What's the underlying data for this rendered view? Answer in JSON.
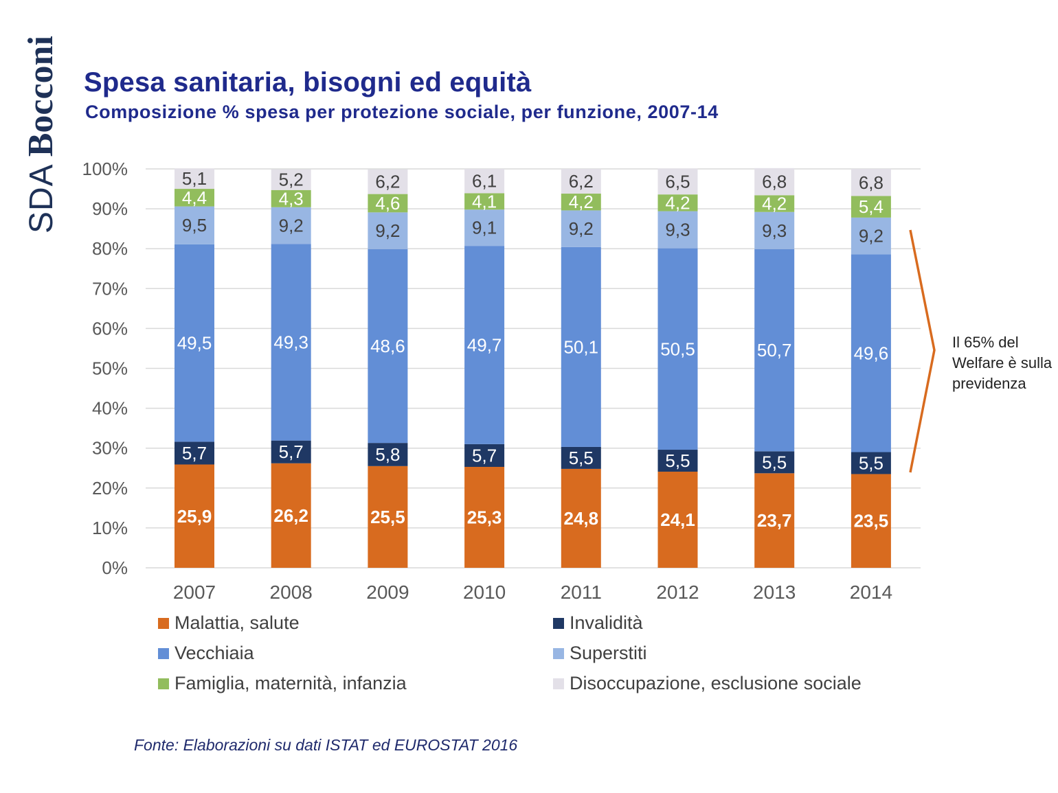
{
  "logo": {
    "prefix": "SDA",
    "name": "Bocconi"
  },
  "header": {
    "title": "Spesa sanitaria, bisogni ed equità",
    "subtitle": "Composizione % spesa per protezione sociale, per funzione, 2007-14"
  },
  "annotation": "Il 65% del Welfare è sulla previdenza",
  "source": "Fonte: Elaborazioni su dati ISTAT ed EUROSTAT 2016",
  "colors": {
    "malattia": "#d86b1f",
    "invalidita": "#1f3864",
    "vecchiaia": "#628ed6",
    "superstiti": "#98b6e3",
    "famiglia": "#92bd5d",
    "disoccupazione": "#e3e0e8",
    "arrow": "#d86b1f"
  },
  "chart_data": {
    "type": "bar",
    "stacked": true,
    "categories": [
      "2007",
      "2008",
      "2009",
      "2010",
      "2011",
      "2012",
      "2013",
      "2014"
    ],
    "ylim": [
      0,
      100
    ],
    "yticks": [
      "0%",
      "10%",
      "20%",
      "30%",
      "40%",
      "50%",
      "60%",
      "70%",
      "80%",
      "90%",
      "100%"
    ],
    "grid": true,
    "legend_position": "bottom",
    "series": [
      {
        "name": "Malattia, salute",
        "key": "malattia",
        "values": [
          25.9,
          26.2,
          25.5,
          25.3,
          24.8,
          24.1,
          23.7,
          23.5
        ],
        "labels": [
          "25,9",
          "26,2",
          "25,5",
          "25,3",
          "24,8",
          "24,1",
          "23,7",
          "23,5"
        ]
      },
      {
        "name": "Invalidità",
        "key": "invalidita",
        "values": [
          5.7,
          5.7,
          5.8,
          5.7,
          5.5,
          5.5,
          5.5,
          5.5
        ],
        "labels": [
          "5,7",
          "5,7",
          "5,8",
          "5,7",
          "5,5",
          "5,5",
          "5,5",
          "5,5"
        ]
      },
      {
        "name": "Vecchiaia",
        "key": "vecchiaia",
        "values": [
          49.5,
          49.3,
          48.6,
          49.7,
          50.1,
          50.5,
          50.7,
          49.6
        ],
        "labels": [
          "49,5",
          "49,3",
          "48,6",
          "49,7",
          "50,1",
          "50,5",
          "50,7",
          "49,6"
        ]
      },
      {
        "name": "Superstiti",
        "key": "superstiti",
        "values": [
          9.5,
          9.2,
          9.2,
          9.1,
          9.2,
          9.3,
          9.3,
          9.2
        ],
        "labels": [
          "9,5",
          "9,2",
          "9,2",
          "9,1",
          "9,2",
          "9,3",
          "9,3",
          "9,2"
        ]
      },
      {
        "name": "Famiglia, maternità, infanzia",
        "key": "famiglia",
        "values": [
          4.4,
          4.3,
          4.6,
          4.1,
          4.2,
          4.2,
          4.2,
          5.4
        ],
        "labels": [
          "4,4",
          "4,3",
          "4,6",
          "4,1",
          "4,2",
          "4,2",
          "4,2",
          "5,4"
        ]
      },
      {
        "name": "Disoccupazione, esclusione sociale",
        "key": "disoccupazione",
        "values": [
          5.1,
          5.2,
          6.2,
          6.1,
          6.2,
          6.5,
          6.8,
          6.8
        ],
        "labels": [
          "5,1",
          "5,2",
          "6,2",
          "6,1",
          "6,2",
          "6,5",
          "6,8",
          "6,8"
        ]
      }
    ],
    "legend_order": [
      "malattia",
      "invalidita",
      "vecchiaia",
      "superstiti",
      "famiglia",
      "disoccupazione"
    ]
  }
}
